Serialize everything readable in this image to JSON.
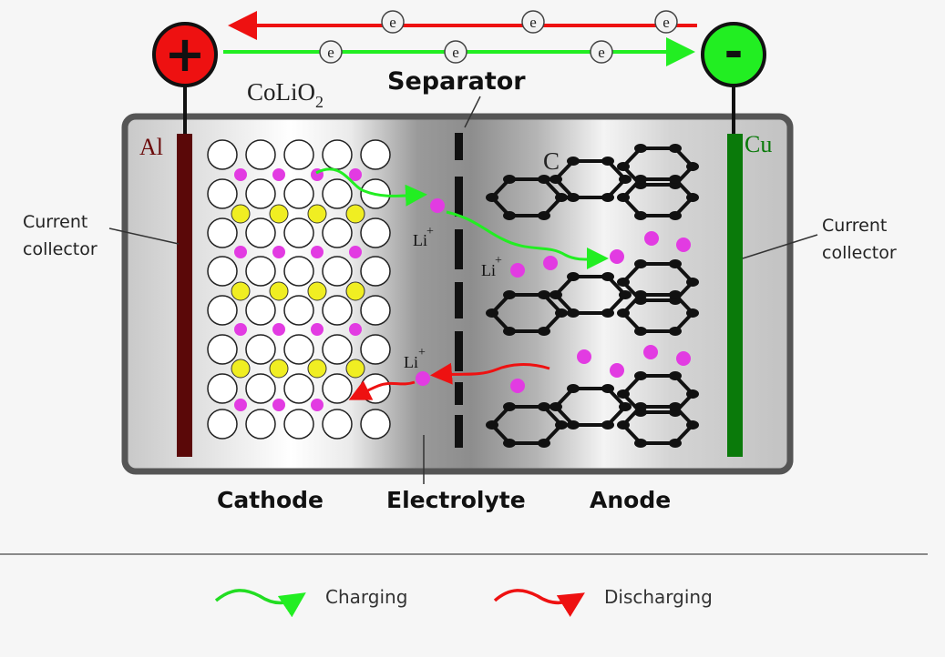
{
  "terminals": {
    "positive": {
      "symbol": "+",
      "color": "#ee1111"
    },
    "negative": {
      "symbol": "-",
      "color": "#22ee22"
    }
  },
  "electron_symbol": "e",
  "labels": {
    "cathode_material": "CoLiO",
    "cathode_material_subscript": "2",
    "separator": "Separator",
    "anode_material": "C",
    "cathode_collector_metal": "Al",
    "anode_collector_metal": "Cu",
    "current_collector_left_line1": "Current",
    "current_collector_left_line2": "collector",
    "current_collector_right_line1": "Current",
    "current_collector_right_line2": "collector",
    "li_ion": "Li",
    "li_charge": "+",
    "cathode": "Cathode",
    "electrolyte": "Electrolyte",
    "anode": "Anode"
  },
  "legend": {
    "charging": {
      "label": "Charging",
      "color": "#22dd22"
    },
    "discharging": {
      "label": "Discharging",
      "color": "#ee1111"
    }
  },
  "colors": {
    "lithium": "#e23be2",
    "cobalt": "#f0ee22",
    "oxygen": "#ffffff",
    "al_collector": "#5a0808",
    "cu_collector": "#0a7a0a",
    "al_text": "#6b0a0a",
    "cu_text": "#0a7a0a"
  }
}
